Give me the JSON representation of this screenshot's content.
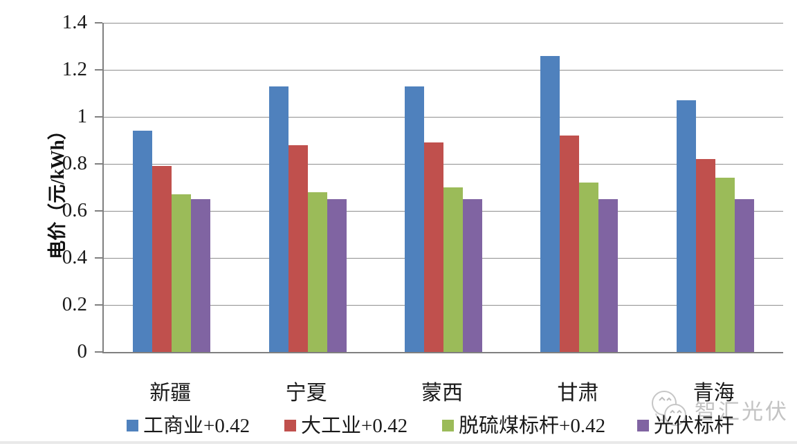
{
  "chart_data": {
    "type": "bar",
    "title": "",
    "xlabel": "",
    "ylabel": "电价（元/kWh）",
    "categories": [
      "新疆",
      "宁夏",
      "蒙西",
      "甘肃",
      "青海"
    ],
    "series": [
      {
        "name": "工商业+0.42",
        "color": "#4F81BD",
        "values": [
          0.94,
          1.13,
          1.13,
          1.26,
          1.07
        ]
      },
      {
        "name": "大工业+0.42",
        "color": "#C0504D",
        "values": [
          0.79,
          0.88,
          0.89,
          0.92,
          0.82
        ]
      },
      {
        "name": "脱硫煤标杆+0.42",
        "color": "#9BBB59",
        "values": [
          0.67,
          0.68,
          0.7,
          0.72,
          0.74
        ]
      },
      {
        "name": "光伏标杆",
        "color": "#8064A2",
        "values": [
          0.65,
          0.65,
          0.65,
          0.65,
          0.65
        ]
      }
    ],
    "ylim": [
      0,
      1.4
    ],
    "ytick_step": 0.2,
    "ytick_labels": [
      "0",
      "0.2",
      "0.4",
      "0.6",
      "0.8",
      "1",
      "1.2",
      "1.4"
    ],
    "grid": "horizontal-only",
    "legend_position": "bottom"
  },
  "watermark": {
    "text": "智汇光伏"
  },
  "colors": {
    "gridline": "#8e8e8e",
    "axis": "#7f7f7f",
    "watermark_gray": "#c3c3c3"
  }
}
